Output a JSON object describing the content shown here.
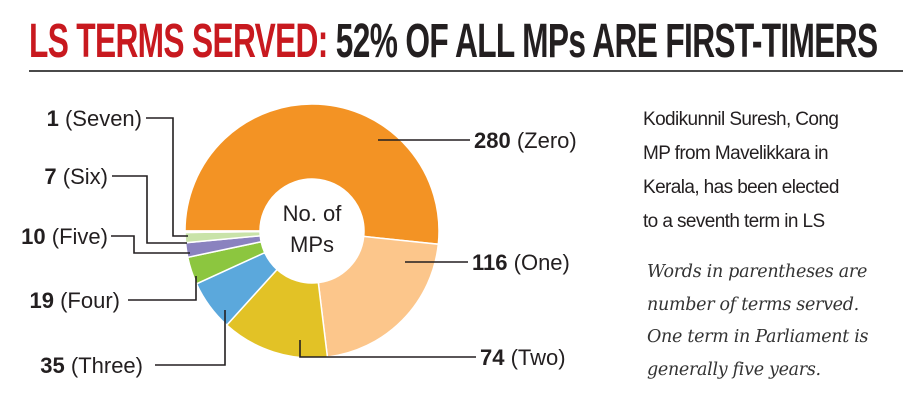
{
  "title": {
    "highlight": "LS TERMS SERVED:",
    "rest": "52% OF ALL MPs ARE FIRST-TIMERS"
  },
  "note_lines": [
    "Kodikunnil Suresh, Cong",
    "MP from Mavelikkara in",
    "Kerala, has been elected",
    "to a seventh term in LS"
  ],
  "footnote_lines": [
    "Words in parentheses are",
    "number of terms served.",
    "One term in Parliament is",
    "generally five years."
  ],
  "chart_data": {
    "type": "pie",
    "variant": "donut",
    "center_label": [
      "No. of",
      "MPs"
    ],
    "slices": [
      {
        "value": 280,
        "label": "(Zero)",
        "color": "#f39324"
      },
      {
        "value": 116,
        "label": "(One)",
        "color": "#fcc68b"
      },
      {
        "value": 74,
        "label": "(Two)",
        "color": "#e2c226"
      },
      {
        "value": 35,
        "label": "(Three)",
        "color": "#5ba8dc"
      },
      {
        "value": 19,
        "label": "(Four)",
        "color": "#8cc63f"
      },
      {
        "value": 10,
        "label": "(Five)",
        "color": "#8a82bf"
      },
      {
        "value": 7,
        "label": "(Six)",
        "color": "#c9e3a9"
      },
      {
        "value": 1,
        "label": "(Seven)",
        "color": "#e8607a"
      }
    ],
    "order": "clockwise from left"
  }
}
